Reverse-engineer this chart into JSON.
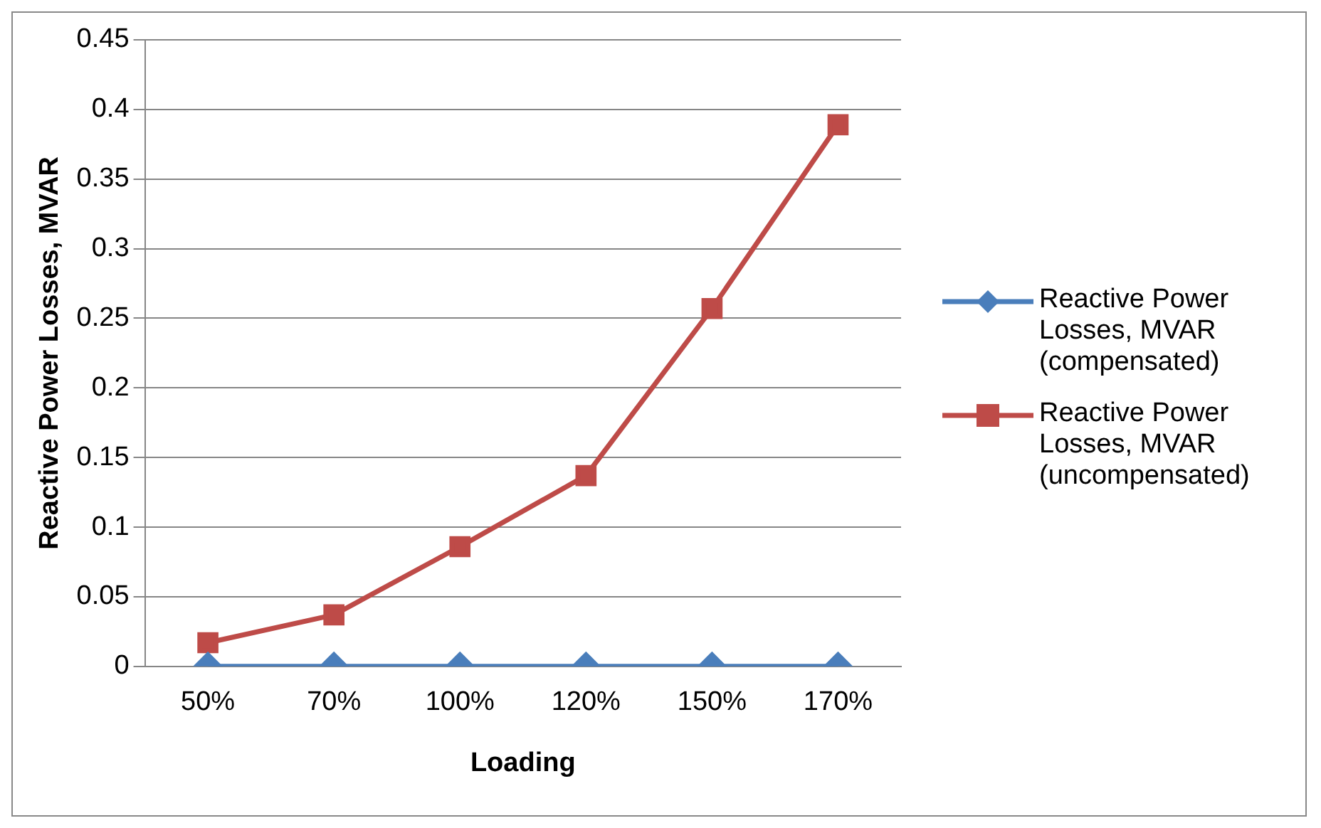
{
  "chart_data": {
    "type": "line",
    "xlabel": "Loading",
    "ylabel": "Reactive Power Losses, MVAR",
    "categories": [
      "50%",
      "70%",
      "100%",
      "120%",
      "150%",
      "170%"
    ],
    "series": [
      {
        "name": "Reactive Power Losses, MVAR (compensated)",
        "color": "#4a7ebb",
        "marker": "diamond",
        "values": [
          0,
          0,
          0,
          0,
          0,
          0
        ]
      },
      {
        "name": "Reactive Power Losses, MVAR (uncompensated)",
        "color": "#be4b48",
        "marker": "square",
        "values": [
          0.017,
          0.037,
          0.086,
          0.137,
          0.257,
          0.389
        ]
      }
    ],
    "ylim": [
      0,
      0.45
    ],
    "yticks": [
      0,
      0.05,
      0.1,
      0.15,
      0.2,
      0.25,
      0.3,
      0.35,
      0.4,
      0.45
    ],
    "grid": "y",
    "legend": "right"
  }
}
